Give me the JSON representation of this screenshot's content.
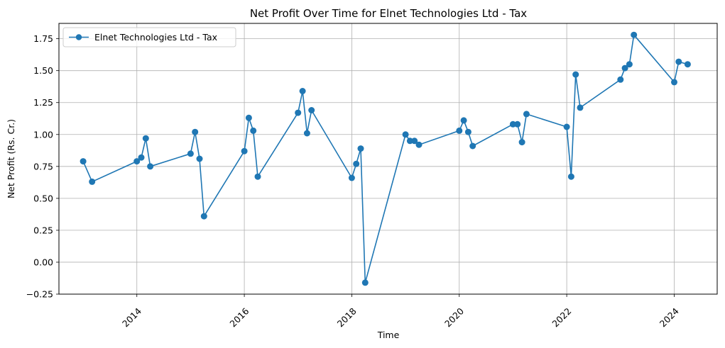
{
  "chart_data": {
    "type": "line",
    "title": "Net Profit Over Time for Elnet Technologies Ltd - Tax",
    "xlabel": "Time",
    "ylabel": "Net Profit (Rs. Cr.)",
    "xlim": [
      2012.55,
      2024.8
    ],
    "ylim": [
      -0.25,
      1.87
    ],
    "x_ticks": [
      2014,
      2016,
      2018,
      2020,
      2022,
      2024
    ],
    "x_tick_labels": [
      "2014",
      "2016",
      "2018",
      "2020",
      "2022",
      "2024"
    ],
    "y_ticks": [
      -0.25,
      0.0,
      0.25,
      0.5,
      0.75,
      1.0,
      1.25,
      1.5,
      1.75
    ],
    "y_tick_labels": [
      "−0.25",
      "0.00",
      "0.25",
      "0.50",
      "0.75",
      "1.00",
      "1.25",
      "1.50",
      "1.75"
    ],
    "grid": true,
    "legend_position": "upper-left",
    "series": [
      {
        "name": "Elnet Technologies Ltd - Tax",
        "color": "#1f77b4",
        "marker": "circle",
        "x": [
          "2013-01",
          "2013-03",
          "2014-01",
          "2014-02",
          "2014-03",
          "2014-04",
          "2015-01",
          "2015-02",
          "2015-03",
          "2015-04",
          "2016-01",
          "2016-02",
          "2016-03",
          "2016-04",
          "2017-01",
          "2017-02",
          "2017-03",
          "2017-04",
          "2018-01",
          "2018-02",
          "2018-03",
          "2018-04",
          "2019-01",
          "2019-02",
          "2019-03",
          "2019-04",
          "2020-01",
          "2020-02",
          "2020-03",
          "2020-04",
          "2021-01",
          "2021-02",
          "2021-03",
          "2021-04",
          "2022-01",
          "2022-02",
          "2022-03",
          "2022-04",
          "2023-01",
          "2023-02",
          "2023-03",
          "2023-04",
          "2024-01",
          "2024-02",
          "2024-04"
        ],
        "y": [
          0.79,
          0.63,
          0.79,
          0.82,
          0.97,
          0.75,
          0.85,
          1.02,
          0.81,
          0.36,
          0.87,
          1.13,
          1.03,
          0.67,
          1.17,
          1.34,
          1.01,
          1.19,
          0.66,
          0.77,
          0.89,
          -0.16,
          1.0,
          0.95,
          0.95,
          0.92,
          1.03,
          1.11,
          1.02,
          0.91,
          1.08,
          1.08,
          0.94,
          1.16,
          1.06,
          0.67,
          1.47,
          1.21,
          1.43,
          1.52,
          1.55,
          1.78,
          1.41,
          1.57,
          1.55
        ]
      }
    ]
  }
}
